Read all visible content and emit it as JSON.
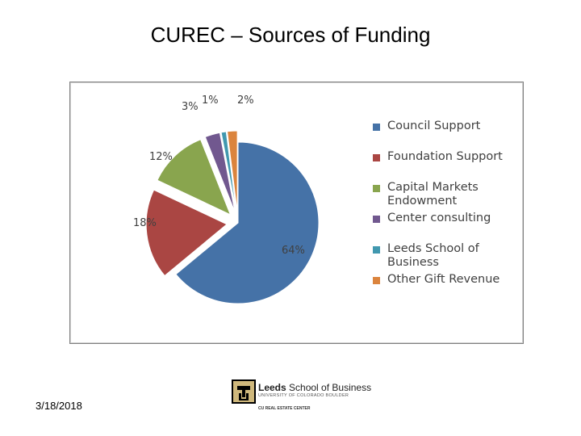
{
  "slide": {
    "title": "CUREC – Sources of Funding",
    "date": "3/18/2018"
  },
  "logo": {
    "name_bold": "Leeds",
    "name_rest": " School of Business",
    "subtitle": "UNIVERSITY OF COLORADO BOULDER",
    "center": "CU REAL ESTATE CENTER",
    "icon": "cu-buffalo-logo-icon"
  },
  "chart_data": {
    "type": "pie",
    "title": "",
    "legend_position": "right",
    "slices": [
      {
        "name": "Council Support",
        "value": 64,
        "label": "64%",
        "color": "#4572A7"
      },
      {
        "name": "Foundation Support",
        "value": 18,
        "label": "18%",
        "color": "#AA4643"
      },
      {
        "name": "Capital Markets Endowment",
        "value": 12,
        "label": "12%",
        "color": "#89A54E"
      },
      {
        "name": "Center consulting",
        "value": 3,
        "label": "3%",
        "color": "#71588F"
      },
      {
        "name": "Leeds School of Business",
        "value": 1,
        "label": "1%",
        "color": "#4198AF"
      },
      {
        "name": "Other Gift Revenue",
        "value": 2,
        "label": "2%",
        "color": "#DB843D"
      }
    ]
  }
}
